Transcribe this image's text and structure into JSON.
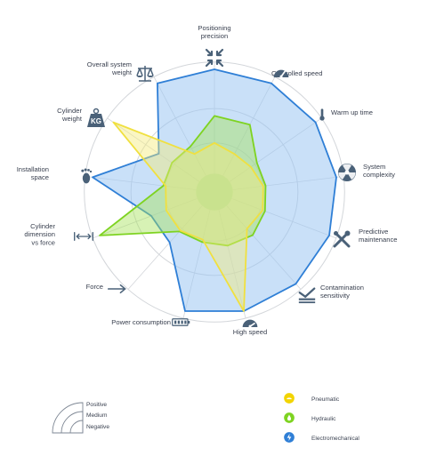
{
  "chart_data": {
    "type": "radar",
    "axes": [
      {
        "label": [
          "Positioning",
          "precision"
        ],
        "icon": "crosshair-arrows-icon"
      },
      {
        "label": [
          "Controlled speed"
        ],
        "icon": "speedometer-icon"
      },
      {
        "label": [
          "Warm up time"
        ],
        "icon": "thermometer-icon"
      },
      {
        "label": [
          "System",
          "complexity"
        ],
        "icon": "radiation-icon"
      },
      {
        "label": [
          "Predictive",
          "maintenance"
        ],
        "icon": "wrench-screwdriver-icon"
      },
      {
        "label": [
          "Contamination",
          "sensitivity"
        ],
        "icon": "contamination-icon"
      },
      {
        "label": [
          "High speed"
        ],
        "icon": "high-speed-gauge-icon"
      },
      {
        "label": [
          "Power consumption"
        ],
        "icon": "battery-icon"
      },
      {
        "label": [
          "Force"
        ],
        "icon": "force-arrow-icon"
      },
      {
        "label": [
          "Cylinder",
          "dimension",
          "vs force"
        ],
        "icon": "double-arrow-icon"
      },
      {
        "label": [
          "Installation",
          "space"
        ],
        "icon": "footprint-icon"
      },
      {
        "label": [
          "Cylinder",
          "weight"
        ],
        "icon": "kg-weight-icon"
      },
      {
        "label": [
          "Overall system",
          "weight"
        ],
        "icon": "balance-scale-icon"
      }
    ],
    "scale": {
      "min": 0,
      "max": 1
    },
    "rings": [
      "Negative",
      "Medium",
      "Positive"
    ],
    "series": [
      {
        "name": "Pneumatic",
        "color": "#f0e040",
        "fill": "#f3ec7a",
        "icon": "pneumatic-drop-icon",
        "values": [
          0.4,
          0.35,
          0.36,
          0.4,
          0.42,
          0.4,
          1.0,
          0.4,
          0.42,
          0.42,
          0.4,
          1.0,
          0.35
        ]
      },
      {
        "name": "Hydraulic",
        "color": "#7ed321",
        "fill": "#a6e35a",
        "icon": "hydraulic-drop-icon",
        "values": [
          0.62,
          0.62,
          0.42,
          0.42,
          0.44,
          0.47,
          0.45,
          0.42,
          0.43,
          1.0,
          0.42,
          0.42,
          0.42
        ]
      },
      {
        "name": "Electromechanical",
        "color": "#2f7fd6",
        "fill": "#9cc7f2",
        "icon": "electromechanical-bolt-icon",
        "values": [
          1.0,
          1.0,
          1.0,
          1.0,
          1.0,
          1.0,
          1.0,
          1.0,
          0.55,
          0.55,
          1.0,
          0.55,
          1.0
        ]
      }
    ],
    "legend_position": "bottom-right"
  }
}
